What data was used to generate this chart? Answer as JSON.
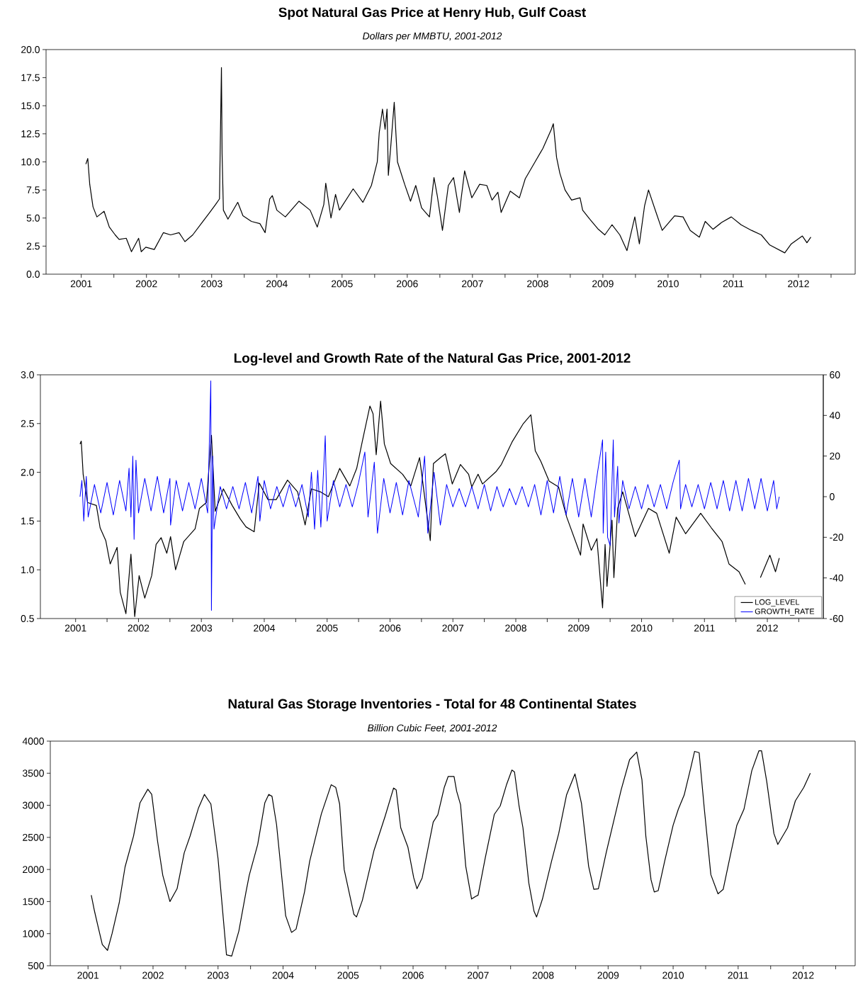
{
  "chart_data": [
    {
      "type": "line",
      "title": "Spot Natural Gas Price at Henry Hub, Gulf Coast",
      "subtitle": "Dollars per MMBTU, 2001-2012",
      "xlim": [
        2000.46,
        2012.87
      ],
      "ylim": [
        0,
        20
      ],
      "yticks": [
        {
          "value": 0,
          "label": "0.0"
        },
        {
          "value": 2.5,
          "label": "2.5"
        },
        {
          "value": 5,
          "label": "5.0"
        },
        {
          "value": 7.5,
          "label": "7.5"
        },
        {
          "value": 10,
          "label": "10.0"
        },
        {
          "value": 12.5,
          "label": "12.5"
        },
        {
          "value": 15,
          "label": "15.0"
        },
        {
          "value": 17.5,
          "label": "17.5"
        },
        {
          "value": 20,
          "label": "20.0"
        }
      ],
      "xticks": [
        2001,
        {
          "value": 2001.5,
          "label": null
        },
        2002,
        {
          "value": 2002.5,
          "label": null
        },
        2003,
        {
          "value": 2003.5,
          "label": null
        },
        2004,
        {
          "value": 2004.5,
          "label": null
        },
        2005,
        {
          "value": 2005.5,
          "label": null
        },
        2006,
        {
          "value": 2006.5,
          "label": null
        },
        2007,
        {
          "value": 2007.5,
          "label": null
        },
        2008,
        {
          "value": 2008.5,
          "label": null
        },
        2009,
        {
          "value": 2009.5,
          "label": null
        },
        2010,
        {
          "value": 2010.5,
          "label": null
        },
        2011,
        {
          "value": 2011.5,
          "label": null
        },
        2012,
        {
          "value": 2012.5,
          "label": null
        }
      ],
      "series": [
        {
          "color": "#000000",
          "x": [
            2001.07,
            2001.1,
            2001.13,
            2001.18,
            2001.24,
            2001.35,
            2001.43,
            2001.52,
            2001.58,
            2001.69,
            2001.77,
            2001.88,
            2001.92,
            2001.99,
            2002.12,
            2002.26,
            2002.37,
            2002.5,
            2002.59,
            2002.71,
            2002.84,
            2002.97,
            2003.06,
            2003.12,
            2003.15,
            2003.16,
            2003.18,
            2003.25,
            2003.4,
            2003.48,
            2003.61,
            2003.74,
            2003.82,
            2003.89,
            2003.93,
            2004.0,
            2004.13,
            2004.34,
            2004.51,
            2004.62,
            2004.72,
            2004.75,
            2004.83,
            2004.9,
            2004.96,
            2005.17,
            2005.32,
            2005.45,
            2005.54,
            2005.57,
            2005.62,
            2005.66,
            2005.69,
            2005.71,
            2005.75,
            2005.8,
            2005.85,
            2005.96,
            2006.05,
            2006.13,
            2006.22,
            2006.34,
            2006.41,
            2006.46,
            2006.54,
            2006.63,
            2006.71,
            2006.8,
            2006.88,
            2006.99,
            2007.11,
            2007.22,
            2007.3,
            2007.39,
            2007.44,
            2007.58,
            2007.72,
            2007.81,
            2007.96,
            2008.08,
            2008.21,
            2008.24,
            2008.29,
            2008.34,
            2008.42,
            2008.52,
            2008.65,
            2008.69,
            2008.8,
            2008.93,
            2009.03,
            2009.14,
            2009.26,
            2009.37,
            2009.49,
            2009.56,
            2009.64,
            2009.7,
            2009.81,
            2009.91,
            2010.1,
            2010.23,
            2010.34,
            2010.48,
            2010.57,
            2010.69,
            2010.82,
            2010.97,
            2011.12,
            2011.28,
            2011.43,
            2011.56,
            2011.79,
            2011.89,
            2012.06,
            2012.13,
            2012.19
          ],
          "values": [
            9.8,
            10.3,
            8.0,
            6.0,
            5.1,
            5.6,
            4.2,
            3.5,
            3.1,
            3.2,
            2.0,
            3.2,
            2.0,
            2.4,
            2.2,
            3.7,
            3.5,
            3.7,
            2.9,
            3.5,
            4.5,
            5.5,
            6.2,
            6.7,
            18.4,
            10.7,
            5.7,
            4.9,
            6.4,
            5.2,
            4.7,
            4.5,
            3.7,
            6.7,
            7.0,
            5.7,
            5.1,
            6.5,
            5.7,
            4.2,
            6.2,
            8.1,
            5.0,
            7.1,
            5.7,
            7.6,
            6.4,
            7.9,
            10.0,
            12.6,
            14.7,
            12.9,
            14.7,
            8.8,
            11.6,
            15.3,
            10.0,
            8.0,
            6.5,
            7.9,
            5.9,
            5.1,
            8.6,
            7.0,
            3.9,
            7.9,
            8.6,
            5.5,
            9.2,
            6.8,
            8.0,
            7.9,
            6.6,
            7.3,
            5.5,
            7.4,
            6.8,
            8.5,
            10.0,
            11.2,
            12.9,
            13.4,
            10.4,
            9.0,
            7.5,
            6.6,
            6.8,
            5.7,
            4.9,
            4.0,
            3.5,
            4.4,
            3.5,
            2.1,
            5.1,
            2.7,
            6.1,
            7.5,
            5.6,
            3.9,
            5.2,
            5.1,
            3.9,
            3.3,
            4.7,
            4.0,
            4.6,
            5.1,
            4.4,
            3.9,
            3.5,
            2.6,
            1.9,
            2.7,
            3.4,
            2.8,
            3.3
          ]
        }
      ]
    },
    {
      "type": "line",
      "title": "Log-level and Growth Rate of the Natural Gas Price, 2001-2012",
      "xlim": [
        2000.44,
        2012.89
      ],
      "ylim": [
        0.5,
        3.0
      ],
      "y2lim": [
        -60,
        60
      ],
      "yticks": [
        {
          "value": 0.5,
          "label": "0.5"
        },
        {
          "value": 1,
          "label": "1.0"
        },
        {
          "value": 1.5,
          "label": "1.5"
        },
        {
          "value": 2,
          "label": "2.0"
        },
        {
          "value": 2.5,
          "label": "2.5"
        },
        {
          "value": 3,
          "label": "3.0"
        }
      ],
      "y2ticks": [
        -60,
        -40,
        -20,
        0,
        20,
        40,
        60
      ],
      "xticks": [
        2001,
        {
          "value": 2001.5,
          "label": null
        },
        2002,
        {
          "value": 2002.5,
          "label": null
        },
        2003,
        {
          "value": 2003.5,
          "label": null
        },
        2004,
        {
          "value": 2004.5,
          "label": null
        },
        2005,
        {
          "value": 2005.5,
          "label": null
        },
        2006,
        {
          "value": 2006.5,
          "label": null
        },
        2007,
        {
          "value": 2007.5,
          "label": null
        },
        2008,
        {
          "value": 2008.5,
          "label": null
        },
        2009,
        {
          "value": 2009.5,
          "label": null
        },
        2010,
        {
          "value": 2010.5,
          "label": null
        },
        2011,
        {
          "value": 2011.5,
          "label": null
        },
        2012,
        {
          "value": 2012.5,
          "label": null
        }
      ],
      "legend": "bottom right",
      "series": [
        {
          "name": "LOG_LEVEL",
          "color": "#000000",
          "x": [
            2001.07,
            2001.09,
            2001.12,
            2001.19,
            2001.33,
            2001.39,
            2001.48,
            2001.55,
            2001.66,
            2001.71,
            2001.8,
            2001.88,
            2001.94,
            2002.01,
            2002.1,
            2002.21,
            2002.28,
            2002.36,
            2002.45,
            2002.51,
            2002.59,
            2002.72,
            2002.9,
            2002.97,
            2003.08,
            2003.16,
            2003.22,
            2003.35,
            2003.49,
            2003.62,
            2003.71,
            2003.84,
            2003.92,
            2004.06,
            2004.19,
            2004.37,
            2004.53,
            2004.65,
            2004.75,
            2004.89,
            2005.02,
            2005.2,
            2005.36,
            2005.47,
            2005.56,
            2005.68,
            2005.73,
            2005.78,
            2005.85,
            2005.91,
            2006.01,
            2006.2,
            2006.33,
            2006.47,
            2006.64,
            2006.69,
            2006.8,
            2006.88,
            2006.99,
            2007.12,
            2007.25,
            2007.3,
            2007.4,
            2007.47,
            2007.69,
            2007.77,
            2007.94,
            2008.12,
            2008.24,
            2008.31,
            2008.4,
            2008.53,
            2008.68,
            2008.81,
            2009.03,
            2009.07,
            2009.2,
            2009.29,
            2009.38,
            2009.42,
            2009.45,
            2009.53,
            2009.56,
            2009.62,
            2009.7,
            2009.9,
            2010.11,
            2010.24,
            2010.44,
            2010.55,
            2010.7,
            2010.94,
            2011.11,
            2011.28,
            2011.39,
            2011.55,
            2011.65,
            2011.77,
            2011.89,
            2012.04,
            2012.13,
            2012.19
          ],
          "values": [
            2.29,
            2.32,
            1.98,
            1.69,
            1.66,
            1.43,
            1.3,
            1.06,
            1.23,
            0.77,
            0.55,
            1.16,
            0.52,
            0.94,
            0.71,
            0.94,
            1.26,
            1.33,
            1.17,
            1.34,
            1.0,
            1.29,
            1.42,
            1.63,
            1.69,
            2.38,
            1.6,
            1.83,
            1.66,
            1.52,
            1.44,
            1.39,
            1.89,
            1.72,
            1.72,
            1.92,
            1.8,
            1.46,
            1.83,
            1.8,
            1.75,
            2.04,
            1.86,
            2.04,
            2.32,
            2.68,
            2.6,
            2.18,
            2.73,
            2.29,
            2.09,
            1.98,
            1.86,
            2.15,
            1.3,
            2.09,
            2.15,
            2.19,
            1.88,
            2.08,
            1.98,
            1.85,
            1.98,
            1.88,
            2.01,
            2.08,
            2.31,
            2.5,
            2.59,
            2.22,
            2.11,
            1.91,
            1.85,
            1.54,
            1.15,
            1.47,
            1.2,
            1.32,
            0.61,
            1.26,
            0.83,
            1.51,
            0.92,
            1.63,
            1.8,
            1.34,
            1.63,
            1.58,
            1.17,
            1.54,
            1.37,
            1.58,
            1.43,
            1.29,
            1.06,
            0.98,
            0.85,
            null,
            0.92,
            1.15,
            0.98,
            1.12
          ]
        },
        {
          "name": "GROWTH_RATE",
          "color": "#0000ff",
          "axis": "y2",
          "x": [
            2001.07,
            2001.1,
            2001.13,
            2001.17,
            2001.2,
            2001.3,
            2001.4,
            2001.5,
            2001.6,
            2001.7,
            2001.8,
            2001.85,
            2001.88,
            2001.91,
            2001.93,
            2001.96,
            2002.0,
            2002.1,
            2002.2,
            2002.3,
            2002.4,
            2002.5,
            2002.51,
            2002.6,
            2002.7,
            2002.8,
            2002.9,
            2003.0,
            2003.1,
            2003.15,
            2003.16,
            2003.18,
            2003.2,
            2003.3,
            2003.4,
            2003.5,
            2003.6,
            2003.7,
            2003.8,
            2003.9,
            2003.93,
            2004.0,
            2004.1,
            2004.2,
            2004.3,
            2004.4,
            2004.5,
            2004.6,
            2004.7,
            2004.75,
            2004.8,
            2004.85,
            2004.9,
            2004.97,
            2005.0,
            2005.1,
            2005.2,
            2005.3,
            2005.4,
            2005.5,
            2005.6,
            2005.65,
            2005.75,
            2005.8,
            2005.9,
            2006.0,
            2006.1,
            2006.2,
            2006.3,
            2006.45,
            2006.55,
            2006.6,
            2006.7,
            2006.8,
            2006.9,
            2007.0,
            2007.1,
            2007.2,
            2007.3,
            2007.4,
            2007.5,
            2007.6,
            2007.7,
            2007.8,
            2007.9,
            2008.0,
            2008.1,
            2008.2,
            2008.3,
            2008.4,
            2008.5,
            2008.6,
            2008.7,
            2008.8,
            2008.9,
            2009.0,
            2009.1,
            2009.2,
            2009.3,
            2009.38,
            2009.39,
            2009.43,
            2009.46,
            2009.5,
            2009.55,
            2009.57,
            2009.62,
            2009.64,
            2009.7,
            2009.8,
            2009.9,
            2010.0,
            2010.1,
            2010.2,
            2010.3,
            2010.4,
            2010.5,
            2010.6,
            2010.62,
            2010.7,
            2010.8,
            2010.9,
            2011.0,
            2011.1,
            2011.2,
            2011.3,
            2011.4,
            2011.5,
            2011.6,
            2011.7,
            2011.8,
            2011.9,
            2012.0,
            2012.1,
            2012.15,
            2012.19
          ],
          "values": [
            0,
            8,
            -12,
            10,
            -10,
            6,
            -8,
            7,
            -9,
            8,
            -7,
            14,
            -10,
            20,
            -21,
            18,
            -8,
            9,
            -7,
            10,
            -8,
            9,
            -14,
            8,
            -7,
            7,
            -6,
            9,
            -8,
            57,
            -56,
            20,
            -16,
            5,
            -6,
            5,
            -6,
            7,
            -8,
            10,
            -12,
            8,
            -6,
            5,
            -5,
            6,
            -5,
            6,
            -10,
            12,
            -16,
            13,
            -15,
            30,
            -12,
            8,
            -5,
            6,
            -5,
            7,
            22,
            -10,
            17,
            -18,
            9,
            -8,
            7,
            -9,
            8,
            -10,
            20,
            -18,
            12,
            -14,
            6,
            -5,
            4,
            -5,
            5,
            -6,
            6,
            -7,
            5,
            -5,
            4,
            -4,
            5,
            -5,
            6,
            -9,
            8,
            -8,
            10,
            -9,
            9,
            -10,
            9,
            -10,
            12,
            28,
            -18,
            22,
            -20,
            -24,
            28,
            -10,
            15,
            -13,
            8,
            -6,
            5,
            -6,
            6,
            -5,
            6,
            -6,
            7,
            18,
            -6,
            6,
            -5,
            6,
            -6,
            7,
            -6,
            8,
            -7,
            8,
            -7,
            9,
            -6,
            9,
            -7,
            8,
            -6,
            0
          ]
        }
      ]
    },
    {
      "type": "line",
      "title": "Natural Gas Storage Inventories - Total for 48 Continental States",
      "subtitle": "Billion Cubic Feet, 2001-2012",
      "xlim": [
        2000.42,
        2012.8
      ],
      "ylim": [
        500,
        4000
      ],
      "yticks": [
        500,
        1000,
        1500,
        2000,
        2500,
        3000,
        3500,
        4000
      ],
      "xticks": [
        2001,
        {
          "value": 2001.5,
          "label": null
        },
        2002,
        {
          "value": 2002.5,
          "label": null
        },
        2003,
        {
          "value": 2003.5,
          "label": null
        },
        2004,
        {
          "value": 2004.5,
          "label": null
        },
        2005,
        {
          "value": 2005.5,
          "label": null
        },
        2006,
        {
          "value": 2006.5,
          "label": null
        },
        2007,
        {
          "value": 2007.5,
          "label": null
        },
        2008,
        {
          "value": 2008.5,
          "label": null
        },
        2009,
        {
          "value": 2009.5,
          "label": null
        },
        2010,
        {
          "value": 2010.5,
          "label": null
        },
        2011,
        {
          "value": 2011.5,
          "label": null
        },
        2012,
        {
          "value": 2012.5,
          "label": null
        }
      ],
      "series": [
        {
          "color": "#000000",
          "x": [
            2001.05,
            2001.1,
            2001.15,
            2001.22,
            2001.3,
            2001.37,
            2001.48,
            2001.57,
            2001.7,
            2001.8,
            2001.92,
            2001.98,
            2002.07,
            2002.15,
            2002.26,
            2002.37,
            2002.48,
            2002.57,
            2002.7,
            2002.79,
            2002.89,
            2003.0,
            2003.13,
            2003.21,
            2003.32,
            2003.43,
            2003.48,
            2003.61,
            2003.72,
            2003.78,
            2003.83,
            2003.9,
            2004.04,
            2004.13,
            2004.2,
            2004.33,
            2004.41,
            2004.59,
            2004.74,
            2004.81,
            2004.87,
            2004.94,
            2005.09,
            2005.13,
            2005.22,
            2005.4,
            2005.57,
            2005.7,
            2005.74,
            2005.81,
            2005.92,
            2006.01,
            2006.06,
            2006.14,
            2006.31,
            2006.38,
            2006.48,
            2006.54,
            2006.63,
            2006.67,
            2006.73,
            2006.81,
            2006.9,
            2006.96,
            2007.0,
            2007.11,
            2007.25,
            2007.34,
            2007.44,
            2007.52,
            2007.56,
            2007.63,
            2007.69,
            2007.78,
            2007.86,
            2007.9,
            2007.99,
            2008.13,
            2008.24,
            2008.36,
            2008.49,
            2008.59,
            2008.7,
            2008.78,
            2008.85,
            2008.97,
            2009.08,
            2009.2,
            2009.33,
            2009.44,
            2009.52,
            2009.58,
            2009.66,
            2009.71,
            2009.77,
            2009.87,
            2010.0,
            2010.08,
            2010.17,
            2010.27,
            2010.33,
            2010.4,
            2010.48,
            2010.58,
            2010.69,
            2010.77,
            2010.88,
            2010.98,
            2011.09,
            2011.21,
            2011.32,
            2011.36,
            2011.44,
            2011.55,
            2011.61,
            2011.76,
            2011.88,
            2012.01,
            2012.11
          ],
          "values": [
            1600,
            1350,
            1130,
            830,
            740,
            1000,
            1480,
            2040,
            2520,
            3040,
            3250,
            3170,
            2440,
            1910,
            1500,
            1700,
            2260,
            2520,
            2960,
            3170,
            3020,
            2170,
            670,
            650,
            1040,
            1650,
            1910,
            2390,
            3040,
            3170,
            3140,
            2700,
            1280,
            1020,
            1070,
            1650,
            2130,
            2870,
            3320,
            3280,
            3020,
            2000,
            1300,
            1260,
            1520,
            2300,
            2830,
            3270,
            3240,
            2650,
            2350,
            1870,
            1700,
            1870,
            2740,
            2850,
            3280,
            3450,
            3450,
            3220,
            3010,
            2050,
            1540,
            1580,
            1600,
            2180,
            2860,
            2990,
            3330,
            3550,
            3520,
            2990,
            2650,
            1790,
            1350,
            1260,
            1540,
            2130,
            2560,
            3160,
            3490,
            3030,
            2050,
            1690,
            1700,
            2260,
            2730,
            3240,
            3710,
            3830,
            3400,
            2520,
            1840,
            1650,
            1670,
            2130,
            2690,
            2940,
            3160,
            3580,
            3840,
            3820,
            2940,
            1920,
            1620,
            1690,
            2220,
            2690,
            2940,
            3540,
            3850,
            3850,
            3370,
            2560,
            2390,
            2650,
            3070,
            3280,
            3500
          ]
        }
      ]
    }
  ]
}
